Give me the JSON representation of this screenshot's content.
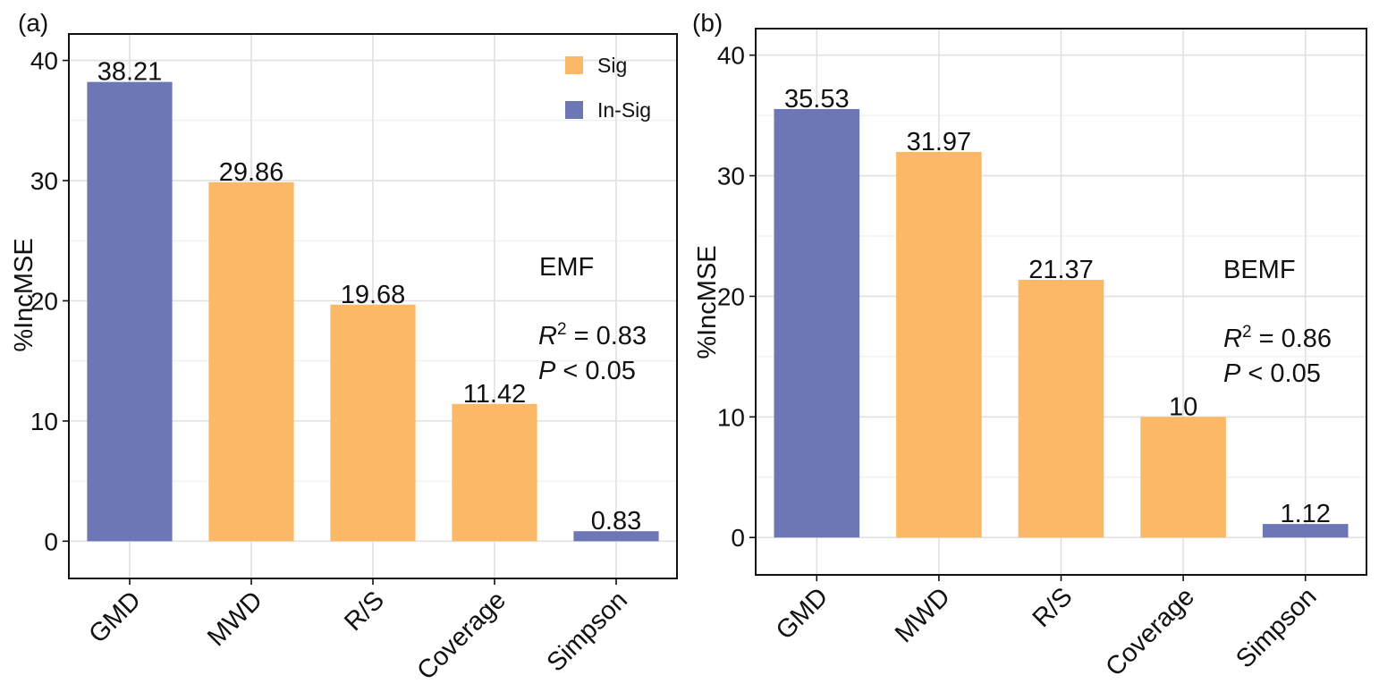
{
  "colors": {
    "sig": "#FBB866",
    "insig": "#6E77B6"
  },
  "legend": [
    {
      "label": "Sig",
      "key": "sig"
    },
    {
      "label": "In-Sig",
      "key": "insig"
    }
  ],
  "chart_data": [
    {
      "type": "bar",
      "panel_label": "(a)",
      "title": "EMF",
      "stats": {
        "r2_symbol": "R",
        "r2_sup": "2",
        "r2_text": " = 0.83",
        "p_symbol": "P",
        "p_text": " < 0.05"
      },
      "ylabel": "%IncMSE",
      "xlabel": "",
      "ylim": [
        -3.1,
        42.2
      ],
      "yticks": [
        0,
        10,
        20,
        30,
        40
      ],
      "categories": [
        "GMD",
        "MWD",
        "R/S",
        "Coverage",
        "Simpson"
      ],
      "values": [
        38.21,
        29.86,
        19.68,
        11.42,
        0.83
      ],
      "labels": [
        "38.21",
        "29.86",
        "19.68",
        "11.42",
        "0.83"
      ],
      "significance": [
        "insig",
        "sig",
        "sig",
        "sig",
        "insig"
      ],
      "show_legend": true,
      "legend_position": "top-right"
    },
    {
      "type": "bar",
      "panel_label": "(b)",
      "title": "BEMF",
      "stats": {
        "r2_symbol": "R",
        "r2_sup": "2",
        "r2_text": " = 0.86",
        "p_symbol": "P",
        "p_text": " < 0.05"
      },
      "ylabel": "%IncMSE",
      "xlabel": "",
      "ylim": [
        -3.1,
        42.2
      ],
      "yticks": [
        0,
        10,
        20,
        30,
        40
      ],
      "categories": [
        "GMD",
        "MWD",
        "R/S",
        "Coverage",
        "Simpson"
      ],
      "values": [
        35.53,
        31.97,
        21.37,
        10,
        1.12
      ],
      "labels": [
        "35.53",
        "31.97",
        "21.37",
        "10",
        "1.12"
      ],
      "significance": [
        "insig",
        "sig",
        "sig",
        "sig",
        "insig"
      ],
      "show_legend": false,
      "legend_position": "none"
    }
  ]
}
